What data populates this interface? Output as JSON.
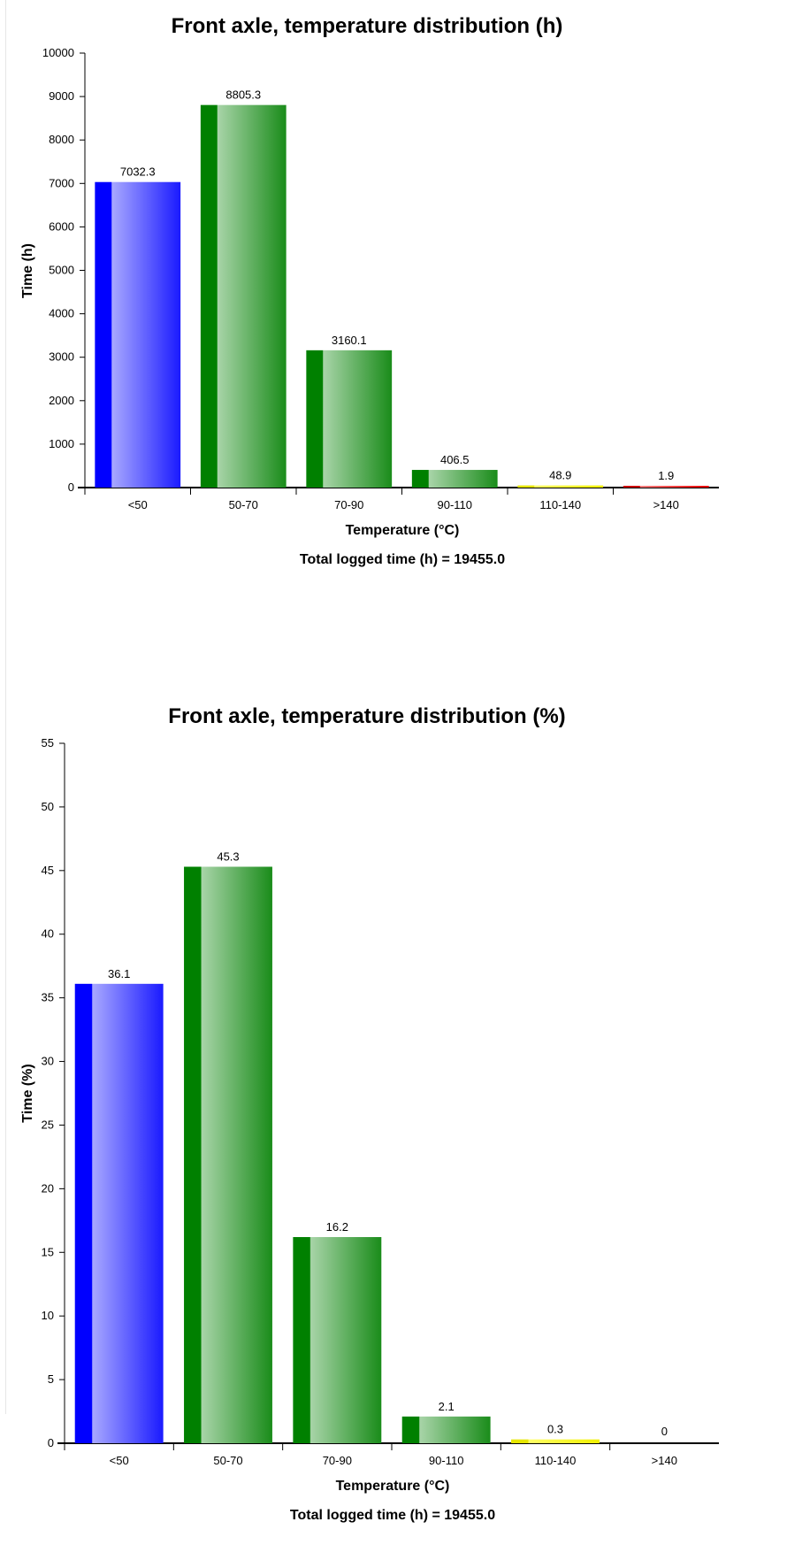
{
  "chart_data": [
    {
      "type": "bar",
      "title": "Front axle, temperature distribution (h)",
      "xlabel": "Temperature (°C)",
      "ylabel": "Time (h)",
      "footer": "Total logged time (h) = 19455.0",
      "categories": [
        "<50",
        "50-70",
        "70-90",
        "90-110",
        "110-140",
        ">140"
      ],
      "values": [
        7032.3,
        8805.3,
        3160.1,
        406.5,
        48.9,
        1.9
      ],
      "value_labels": [
        "7032.3",
        "8805.3",
        "3160.1",
        "406.5",
        "48.9",
        "1.9"
      ],
      "ylim": [
        0,
        10000
      ],
      "yticks": [
        0,
        1000,
        2000,
        3000,
        4000,
        5000,
        6000,
        7000,
        8000,
        9000,
        10000
      ],
      "bar_colors": [
        "blue",
        "green",
        "green",
        "green",
        "yellow",
        "red"
      ],
      "grid": false
    },
    {
      "type": "bar",
      "title": "Front axle, temperature distribution (%)",
      "xlabel": "Temperature (°C)",
      "ylabel": "Time (%)",
      "footer": "Total logged time (h) = 19455.0",
      "categories": [
        "<50",
        "50-70",
        "70-90",
        "90-110",
        "110-140",
        ">140"
      ],
      "values": [
        36.1,
        45.3,
        16.2,
        2.1,
        0.3,
        0
      ],
      "value_labels": [
        "36.1",
        "45.3",
        "16.2",
        "2.1",
        "0.3",
        "0"
      ],
      "ylim": [
        0,
        55
      ],
      "yticks": [
        0,
        5,
        10,
        15,
        20,
        25,
        30,
        35,
        40,
        45,
        50,
        55
      ],
      "bar_colors": [
        "blue",
        "green",
        "green",
        "green",
        "yellow",
        "red"
      ],
      "grid": false
    }
  ],
  "palette": {
    "blue": {
      "dark": "#0000ff",
      "light": "#a8a8ff",
      "mid": "#1a1aff"
    },
    "green": {
      "dark": "#008000",
      "light": "#a8d4a8",
      "mid": "#1a8c1a"
    },
    "yellow": {
      "dark": "#e6e600",
      "light": "#ffff66",
      "mid": "#f0f000"
    },
    "red": {
      "dark": "#cc0000",
      "light": "#ff8080",
      "mid": "#e60000"
    }
  }
}
